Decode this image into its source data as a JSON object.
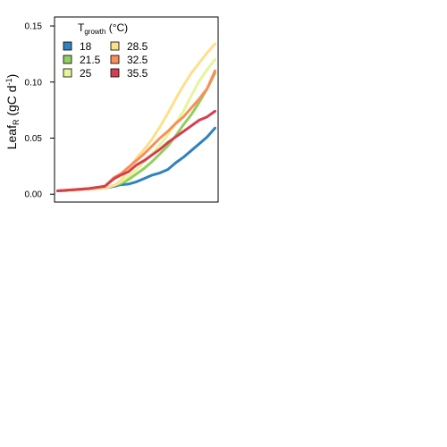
{
  "chart_data": {
    "type": "line",
    "title": "",
    "xlabel": "",
    "ylabel": {
      "main": "Leaf",
      "sub": "R",
      "unit_open": " (gC d",
      "unit_sup": "-1",
      "unit_close": ")"
    },
    "ylim": [
      -0.007,
      0.158
    ],
    "yticks": [
      0.0,
      0.05,
      0.1,
      0.15
    ],
    "ytick_labels": [
      "0.00",
      "0.05",
      "0.10",
      "0.15"
    ],
    "xlim": [
      -2,
      102
    ],
    "grid": false,
    "legend": {
      "placement": "top-left",
      "title_main": "T",
      "title_sub": "growth",
      "title_unit": " (°C)"
    },
    "series": [
      {
        "name": "18",
        "color": "#3182bd",
        "x": [
          0,
          10,
          20,
          30,
          36,
          40,
          45,
          50,
          55,
          60,
          65,
          70,
          75,
          80,
          85,
          90,
          95,
          100
        ],
        "y": [
          0.003,
          0.0035,
          0.0045,
          0.0055,
          0.007,
          0.0085,
          0.009,
          0.011,
          0.014,
          0.017,
          0.019,
          0.022,
          0.028,
          0.033,
          0.039,
          0.045,
          0.051,
          0.059
        ]
      },
      {
        "name": "21.5",
        "color": "#91cf60",
        "x": [
          0,
          10,
          20,
          30,
          36,
          40,
          45,
          50,
          55,
          60,
          65,
          70,
          75,
          80,
          85,
          90,
          95,
          100
        ],
        "y": [
          0.003,
          0.0035,
          0.0045,
          0.0055,
          0.008,
          0.0095,
          0.013,
          0.018,
          0.023,
          0.029,
          0.036,
          0.043,
          0.052,
          0.062,
          0.071,
          0.082,
          0.094,
          0.108
        ]
      },
      {
        "name": "25",
        "color": "#e6f598",
        "x": [
          0,
          10,
          20,
          30,
          36,
          40,
          45,
          50,
          55,
          60,
          65,
          70,
          75,
          80,
          85,
          90,
          95,
          100
        ],
        "y": [
          0.003,
          0.0035,
          0.0045,
          0.0055,
          0.008,
          0.011,
          0.016,
          0.022,
          0.029,
          0.036,
          0.044,
          0.053,
          0.063,
          0.074,
          0.088,
          0.101,
          0.111,
          0.12
        ]
      },
      {
        "name": "28.5",
        "color": "#fee08b",
        "x": [
          0,
          10,
          20,
          30,
          36,
          40,
          45,
          50,
          55,
          60,
          65,
          70,
          75,
          80,
          85,
          90,
          95,
          100
        ],
        "y": [
          0.003,
          0.0035,
          0.0045,
          0.0055,
          0.008,
          0.012,
          0.022,
          0.032,
          0.04,
          0.049,
          0.06,
          0.072,
          0.085,
          0.097,
          0.108,
          0.117,
          0.126,
          0.134
        ]
      },
      {
        "name": "32.5",
        "color": "#fc8d59",
        "x": [
          0,
          10,
          20,
          30,
          36,
          40,
          45,
          50,
          55,
          60,
          65,
          70,
          75,
          80,
          85,
          90,
          95,
          100
        ],
        "y": [
          0.003,
          0.004,
          0.005,
          0.007,
          0.015,
          0.018,
          0.024,
          0.03,
          0.036,
          0.043,
          0.05,
          0.056,
          0.063,
          0.069,
          0.077,
          0.085,
          0.094,
          0.11
        ]
      },
      {
        "name": "35.5",
        "color": "#d53e4f",
        "x": [
          0,
          10,
          20,
          30,
          36,
          40,
          45,
          50,
          55,
          60,
          65,
          70,
          75,
          80,
          85,
          90,
          95,
          100
        ],
        "y": [
          0.003,
          0.004,
          0.005,
          0.007,
          0.014,
          0.017,
          0.02,
          0.026,
          0.03,
          0.035,
          0.04,
          0.046,
          0.051,
          0.056,
          0.061,
          0.066,
          0.069,
          0.074
        ]
      }
    ]
  }
}
